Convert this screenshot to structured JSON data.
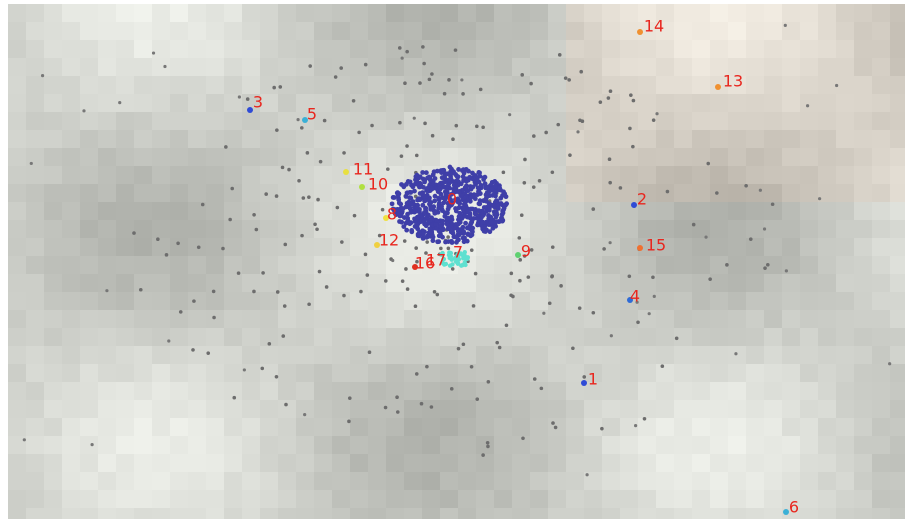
{
  "clusters": [
    {
      "label": "0"
    },
    {
      "label": "1"
    },
    {
      "label": "2"
    },
    {
      "label": "3"
    },
    {
      "label": "4"
    },
    {
      "label": "5"
    },
    {
      "label": "6"
    },
    {
      "label": "7"
    },
    {
      "label": "8"
    },
    {
      "label": "9"
    },
    {
      "label": "10"
    },
    {
      "label": "11"
    },
    {
      "label": "12"
    },
    {
      "label": "13"
    },
    {
      "label": "14"
    },
    {
      "label": "15"
    },
    {
      "label": "16"
    },
    {
      "label": "17"
    }
  ]
}
